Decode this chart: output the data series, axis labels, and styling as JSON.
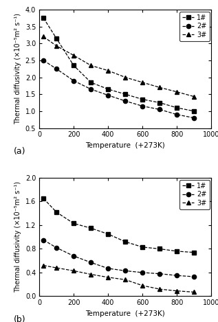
{
  "temp": [
    25,
    100,
    200,
    300,
    400,
    500,
    600,
    700,
    800,
    900
  ],
  "plot_a": {
    "series1": [
      3.75,
      3.15,
      2.35,
      1.85,
      1.65,
      1.5,
      1.35,
      1.25,
      1.1,
      1.0
    ],
    "series2": [
      2.5,
      2.25,
      1.9,
      1.65,
      1.47,
      1.3,
      1.15,
      1.05,
      0.9,
      0.8
    ],
    "series3": [
      3.2,
      2.93,
      2.65,
      2.35,
      2.2,
      2.0,
      1.85,
      1.7,
      1.57,
      1.43
    ]
  },
  "plot_b": {
    "series1": [
      1.65,
      1.42,
      1.23,
      1.15,
      1.05,
      0.92,
      0.83,
      0.8,
      0.76,
      0.74
    ],
    "series2": [
      0.95,
      0.82,
      0.68,
      0.57,
      0.47,
      0.43,
      0.4,
      0.38,
      0.35,
      0.33
    ],
    "series3": [
      0.52,
      0.48,
      0.43,
      0.37,
      0.32,
      0.28,
      0.18,
      0.12,
      0.09,
      0.07
    ]
  },
  "ylabel_a": "Thermal diffusivity (×10⁻⁵m² s⁻¹)",
  "ylabel_b": "Thermal diffusivity (×10⁻⁵m² s⁻¹)",
  "xlabel": "Temperature  (+273K)",
  "label_a": "(a)",
  "label_b": "(b)",
  "legend_labels": [
    "1#",
    "2#",
    "3#"
  ],
  "ylim_a": [
    0.5,
    4.0
  ],
  "ylim_b": [
    0.0,
    2.0
  ],
  "xlim": [
    0,
    1000
  ],
  "yticks_a": [
    0.5,
    1.0,
    1.5,
    2.0,
    2.5,
    3.0,
    3.5,
    4.0
  ],
  "yticks_b": [
    0.0,
    0.4,
    0.8,
    1.2,
    1.6,
    2.0
  ],
  "xticks": [
    0,
    200,
    400,
    600,
    800,
    1000
  ],
  "marker1": "s",
  "marker2": "o",
  "marker3": "^",
  "color": "black",
  "markersize": 4.5,
  "linewidth": 0.9,
  "linestyle": "--"
}
